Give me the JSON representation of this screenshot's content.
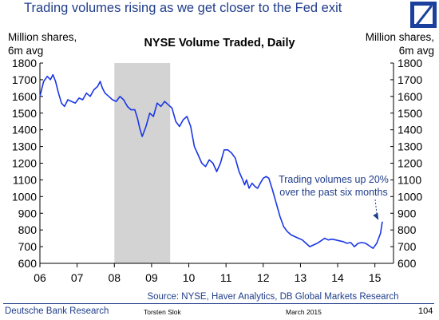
{
  "header": {
    "title": "Trading volumes rising as we get closer to the Fed exit",
    "logo": "deutsche-bank-logo",
    "logo_color": "#1a3f9c"
  },
  "chart_data": {
    "type": "line",
    "title": "NYSE Volume Traded, Daily",
    "ylabel_left": [
      "Million shares,",
      "6m avg"
    ],
    "ylabel_right": [
      "Million shares,",
      "6m avg"
    ],
    "ylim": [
      600,
      1800
    ],
    "yticks": [
      600,
      700,
      800,
      900,
      1000,
      1100,
      1200,
      1300,
      1400,
      1500,
      1600,
      1700,
      1800
    ],
    "xlim": [
      2006.0,
      2015.5
    ],
    "xticks": [
      {
        "value": 2006,
        "label": "06"
      },
      {
        "value": 2007,
        "label": "07"
      },
      {
        "value": 2008,
        "label": "08"
      },
      {
        "value": 2009,
        "label": "09"
      },
      {
        "value": 2010,
        "label": "10"
      },
      {
        "value": 2011,
        "label": "11"
      },
      {
        "value": 2012,
        "label": "12"
      },
      {
        "value": 2013,
        "label": "13"
      },
      {
        "value": 2014,
        "label": "14"
      },
      {
        "value": 2015,
        "label": "15"
      }
    ],
    "grid": false,
    "shaded_region": {
      "x_start": 2008.0,
      "x_end": 2009.5,
      "color": "#d3d3d3"
    },
    "series": [
      {
        "color": "#1a36e6",
        "x": [
          2006.0,
          2006.1,
          2006.2,
          2006.28,
          2006.35,
          2006.42,
          2006.5,
          2006.58,
          2006.66,
          2006.75,
          2006.85,
          2006.95,
          2007.05,
          2007.15,
          2007.25,
          2007.35,
          2007.45,
          2007.55,
          2007.62,
          2007.68,
          2007.75,
          2007.85,
          2007.95,
          2008.05,
          2008.15,
          2008.25,
          2008.35,
          2008.45,
          2008.55,
          2008.62,
          2008.68,
          2008.75,
          2008.85,
          2008.95,
          2009.05,
          2009.15,
          2009.25,
          2009.35,
          2009.45,
          2009.55,
          2009.65,
          2009.75,
          2009.85,
          2009.95,
          2010.05,
          2010.15,
          2010.25,
          2010.35,
          2010.45,
          2010.55,
          2010.65,
          2010.75,
          2010.85,
          2010.95,
          2011.05,
          2011.15,
          2011.25,
          2011.35,
          2011.45,
          2011.5,
          2011.55,
          2011.62,
          2011.7,
          2011.78,
          2011.85,
          2011.92,
          2012.0,
          2012.08,
          2012.15,
          2012.25,
          2012.35,
          2012.45,
          2012.55,
          2012.65,
          2012.75,
          2012.85,
          2012.95,
          2013.05,
          2013.15,
          2013.25,
          2013.35,
          2013.45,
          2013.55,
          2013.65,
          2013.75,
          2013.85,
          2013.95,
          2014.05,
          2014.15,
          2014.25,
          2014.35,
          2014.45,
          2014.55,
          2014.65,
          2014.75,
          2014.85,
          2014.95,
          2015.05,
          2015.15,
          2015.2
        ],
        "y": [
          1600,
          1690,
          1720,
          1700,
          1730,
          1690,
          1620,
          1560,
          1540,
          1580,
          1570,
          1560,
          1590,
          1580,
          1620,
          1600,
          1640,
          1660,
          1690,
          1650,
          1620,
          1600,
          1580,
          1570,
          1600,
          1580,
          1540,
          1520,
          1520,
          1470,
          1410,
          1360,
          1420,
          1500,
          1480,
          1560,
          1540,
          1570,
          1550,
          1530,
          1450,
          1420,
          1460,
          1480,
          1420,
          1300,
          1250,
          1200,
          1180,
          1220,
          1200,
          1150,
          1200,
          1280,
          1280,
          1260,
          1230,
          1150,
          1100,
          1070,
          1100,
          1050,
          1080,
          1060,
          1050,
          1080,
          1110,
          1120,
          1110,
          1040,
          960,
          880,
          820,
          790,
          770,
          760,
          750,
          740,
          720,
          700,
          710,
          720,
          735,
          750,
          740,
          745,
          740,
          735,
          730,
          720,
          725,
          700,
          720,
          725,
          720,
          705,
          690,
          720,
          780,
          850
        ]
      }
    ],
    "annotation": {
      "lines": [
        "Trading volumes up 20%",
        "over the past six months"
      ],
      "arrow_to": {
        "x": 2015.12,
        "y": 840
      }
    }
  },
  "footer": {
    "source": "Source: NYSE, Haver Analytics, DB Global Markets Research",
    "org": "Deutsche Bank Research",
    "author": "Torsten Slok",
    "date": "March 2015",
    "page": "104"
  }
}
